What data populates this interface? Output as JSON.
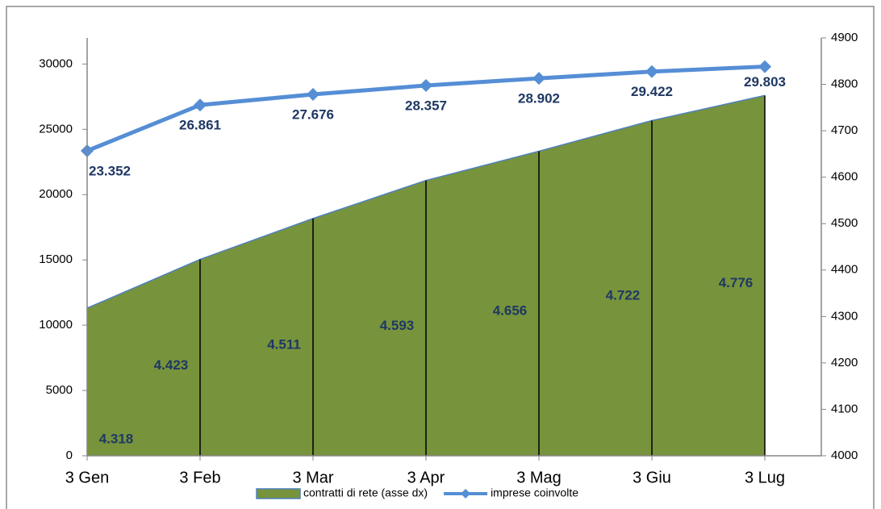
{
  "chart_data": {
    "type": "area-line",
    "categories": [
      "3 Gen",
      "3 Feb",
      "3 Mar",
      "3 Apr",
      "3 Mag",
      "3 Giu",
      "3 Lug"
    ],
    "series": [
      {
        "name": "contratti di rete (asse dx)",
        "type": "area",
        "axis": "y2",
        "color": "#77933c",
        "outline": "#4f81bd",
        "values": [
          4318,
          4423,
          4511,
          4593,
          4656,
          4722,
          4776
        ],
        "value_labels": [
          "4.318",
          "4.423",
          "4.511",
          "4.593",
          "4.656",
          "4.722",
          "4.776"
        ]
      },
      {
        "name": "imprese coinvolte",
        "type": "line",
        "color": "#558ed5",
        "values": [
          23352,
          26861,
          27676,
          28357,
          28902,
          29422,
          29803
        ],
        "value_labels": [
          "23.352",
          "26.861",
          "27.676",
          "28.357",
          "28.902",
          "29.422",
          "29.803"
        ]
      }
    ],
    "ylim": [
      0,
      32000
    ],
    "yticks": [
      0,
      5000,
      10000,
      15000,
      20000,
      25000,
      30000
    ],
    "y2lim": [
      4000,
      4900
    ],
    "y2ticks": [
      4000,
      4100,
      4200,
      4300,
      4400,
      4500,
      4600,
      4700,
      4800,
      4900
    ],
    "grid": false,
    "legend": "bottom"
  }
}
